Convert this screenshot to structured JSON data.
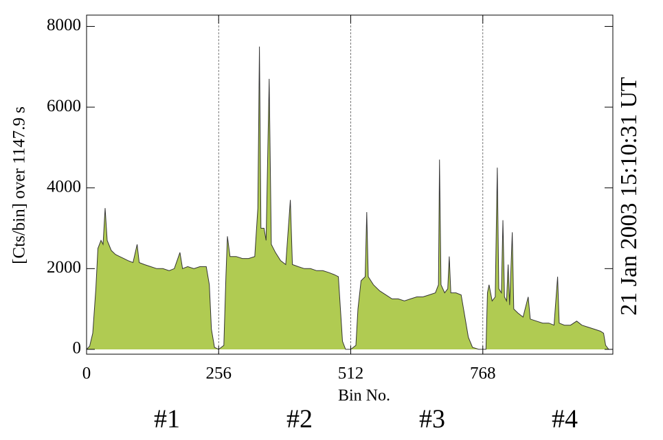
{
  "chart_data": {
    "type": "area",
    "xlabel": "Bin No.",
    "ylabel": "[Cts/bin] over  1147.9 s",
    "side_label": "21 Jan 2003  15:10:31  UT",
    "side_label_color": "#cc0000",
    "segment_labels": [
      {
        "text": "#1",
        "color": "#cc0000"
      },
      {
        "text": "#2",
        "color": "#0000cc"
      },
      {
        "text": "#3",
        "color": "#cc0000"
      },
      {
        "text": "#4",
        "color": "#0000cc"
      }
    ],
    "dividers": [
      256,
      512,
      768
    ],
    "xlim": [
      0,
      1020
    ],
    "ylim": [
      -120,
      8280
    ],
    "xticks": [
      0,
      256,
      512,
      768
    ],
    "yticks": [
      0,
      2000,
      4000,
      6000,
      8000
    ],
    "series": [
      {
        "color": "#b0cb52",
        "x": [
          0,
          6,
          12,
          18,
          22,
          28,
          32,
          36,
          40,
          48,
          56,
          64,
          72,
          80,
          90,
          98,
          102,
          112,
          124,
          136,
          148,
          160,
          170,
          181,
          186,
          196,
          208,
          220,
          232,
          238,
          242,
          248,
          256,
          266,
          270,
          273,
          278,
          290,
          302,
          314,
          326,
          332,
          335,
          338,
          344,
          348,
          354,
          358,
          366,
          376,
          386,
          395,
          399,
          410,
          422,
          434,
          446,
          458,
          470,
          480,
          488,
          492,
          496,
          502,
          512,
          522,
          526,
          532,
          540,
          543,
          546,
          556,
          568,
          580,
          592,
          604,
          616,
          628,
          640,
          652,
          664,
          676,
          682,
          684,
          687,
          694,
          700,
          703,
          706,
          716,
          726,
          732,
          740,
          748,
          760,
          774,
          777,
          780,
          786,
          792,
          796,
          799,
          804,
          807,
          810,
          814,
          817,
          820,
          825,
          828,
          836,
          846,
          856,
          860,
          872,
          884,
          896,
          906,
          913,
          916,
          926,
          938,
          950,
          960,
          972,
          984,
          996,
          1002,
          1006,
          1012
        ],
        "values": [
          0,
          80,
          400,
          1500,
          2500,
          2700,
          2600,
          3500,
          2700,
          2450,
          2350,
          2300,
          2250,
          2200,
          2150,
          2600,
          2150,
          2100,
          2050,
          2000,
          2000,
          1950,
          2000,
          2400,
          2000,
          2050,
          2000,
          2050,
          2050,
          1600,
          500,
          50,
          0,
          100,
          1800,
          2800,
          2300,
          2300,
          2250,
          2250,
          2300,
          3500,
          7500,
          3000,
          3000,
          2700,
          6700,
          2600,
          2400,
          2200,
          2100,
          3700,
          2100,
          2050,
          2000,
          2000,
          1950,
          1950,
          1900,
          1850,
          1800,
          1000,
          200,
          0,
          0,
          100,
          1000,
          1700,
          1800,
          3400,
          1800,
          1600,
          1450,
          1350,
          1250,
          1250,
          1200,
          1250,
          1300,
          1300,
          1350,
          1400,
          1600,
          4700,
          1600,
          1400,
          1500,
          2300,
          1400,
          1400,
          1350,
          900,
          300,
          50,
          0,
          0,
          1400,
          1600,
          1200,
          1300,
          4500,
          1500,
          1400,
          3200,
          1300,
          1200,
          2100,
          1100,
          2900,
          1000,
          900,
          800,
          1300,
          750,
          700,
          650,
          650,
          600,
          1800,
          650,
          600,
          600,
          700,
          600,
          550,
          500,
          450,
          400,
          100,
          0
        ]
      }
    ]
  }
}
